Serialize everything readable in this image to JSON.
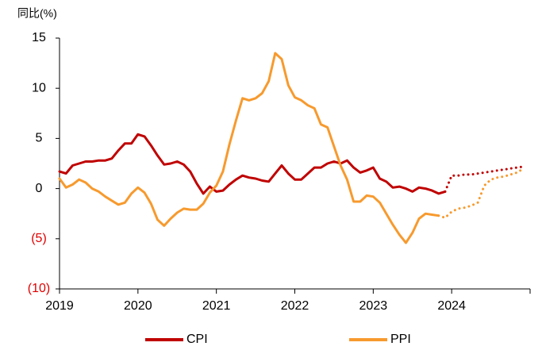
{
  "chart_data": {
    "type": "line",
    "y_axis_label": "同比(%)",
    "categories": [
      "2019",
      null,
      null,
      null,
      null,
      null,
      null,
      null,
      null,
      null,
      null,
      null,
      "2020",
      null,
      null,
      null,
      null,
      null,
      null,
      null,
      null,
      null,
      null,
      null,
      "2021",
      null,
      null,
      null,
      null,
      null,
      null,
      null,
      null,
      null,
      null,
      null,
      "2022",
      null,
      null,
      null,
      null,
      null,
      null,
      null,
      null,
      null,
      null,
      null,
      "2023",
      null,
      null,
      null,
      null,
      null,
      null,
      null,
      null,
      null,
      null,
      null,
      "2024",
      null,
      null,
      null,
      null,
      null,
      null,
      null,
      null,
      null,
      null,
      null
    ],
    "series": [
      {
        "name": "CPI",
        "color": "#c00000",
        "values": [
          1.7,
          1.5,
          2.3,
          2.5,
          2.7,
          2.7,
          2.8,
          2.8,
          3.0,
          3.8,
          4.5,
          4.5,
          5.4,
          5.2,
          4.3,
          3.3,
          2.4,
          2.5,
          2.7,
          2.4,
          1.7,
          0.5,
          -0.5,
          0.2,
          -0.3,
          -0.2,
          0.4,
          0.9,
          1.3,
          1.1,
          1.0,
          0.8,
          0.7,
          1.5,
          2.3,
          1.5,
          0.9,
          0.9,
          1.5,
          2.1,
          2.1,
          2.5,
          2.7,
          2.5,
          2.8,
          2.1,
          1.6,
          1.8,
          2.1,
          1.0,
          0.7,
          0.1,
          0.2,
          0.0,
          -0.3,
          0.1,
          0.0,
          -0.2,
          -0.5,
          -0.3,
          null,
          null,
          null,
          null,
          null,
          null,
          null,
          null,
          null,
          null,
          null,
          null
        ],
        "forecast": [
          null,
          null,
          null,
          null,
          null,
          null,
          null,
          null,
          null,
          null,
          null,
          null,
          null,
          null,
          null,
          null,
          null,
          null,
          null,
          null,
          null,
          null,
          null,
          null,
          null,
          null,
          null,
          null,
          null,
          null,
          null,
          null,
          null,
          null,
          null,
          null,
          null,
          null,
          null,
          null,
          null,
          null,
          null,
          null,
          null,
          null,
          null,
          null,
          null,
          null,
          null,
          null,
          null,
          null,
          null,
          null,
          null,
          null,
          null,
          -0.3,
          1.3,
          1.3,
          1.4,
          1.4,
          1.5,
          1.6,
          1.7,
          1.8,
          1.9,
          2.0,
          2.1,
          2.2
        ]
      },
      {
        "name": "PPI",
        "color": "#f79a2e",
        "values": [
          1.0,
          0.1,
          0.4,
          0.9,
          0.6,
          0.0,
          -0.3,
          -0.8,
          -1.2,
          -1.6,
          -1.4,
          -0.5,
          0.1,
          -0.4,
          -1.5,
          -3.1,
          -3.7,
          -3.0,
          -2.4,
          -2.0,
          -2.1,
          -2.1,
          -1.5,
          -0.4,
          0.3,
          1.7,
          4.4,
          6.8,
          9.0,
          8.8,
          9.0,
          9.5,
          10.7,
          13.5,
          12.9,
          10.3,
          9.1,
          8.8,
          8.3,
          8.0,
          6.4,
          6.1,
          4.2,
          2.3,
          0.9,
          -1.3,
          -1.3,
          -0.7,
          -0.8,
          -1.4,
          -2.5,
          -3.6,
          -4.6,
          -5.4,
          -4.4,
          -3.0,
          -2.5,
          -2.6,
          -2.7,
          null,
          null,
          null,
          null,
          null,
          null,
          null,
          null,
          null,
          null,
          null,
          null,
          null
        ],
        "forecast": [
          null,
          null,
          null,
          null,
          null,
          null,
          null,
          null,
          null,
          null,
          null,
          null,
          null,
          null,
          null,
          null,
          null,
          null,
          null,
          null,
          null,
          null,
          null,
          null,
          null,
          null,
          null,
          null,
          null,
          null,
          null,
          null,
          null,
          null,
          null,
          null,
          null,
          null,
          null,
          null,
          null,
          null,
          null,
          null,
          null,
          null,
          null,
          null,
          null,
          null,
          null,
          null,
          null,
          null,
          null,
          null,
          null,
          null,
          -2.7,
          -2.9,
          -2.3,
          -2.0,
          -1.9,
          -1.7,
          -1.4,
          0.3,
          0.9,
          1.1,
          1.2,
          1.4,
          1.6,
          2.0
        ]
      }
    ],
    "ylim": [
      -10,
      15
    ],
    "yticks": [
      {
        "value": -10,
        "label": "(10)"
      },
      {
        "value": -5,
        "label": "(5)"
      },
      0,
      5,
      10,
      15
    ],
    "negative_tick_color": "#e00000",
    "grid": false
  }
}
